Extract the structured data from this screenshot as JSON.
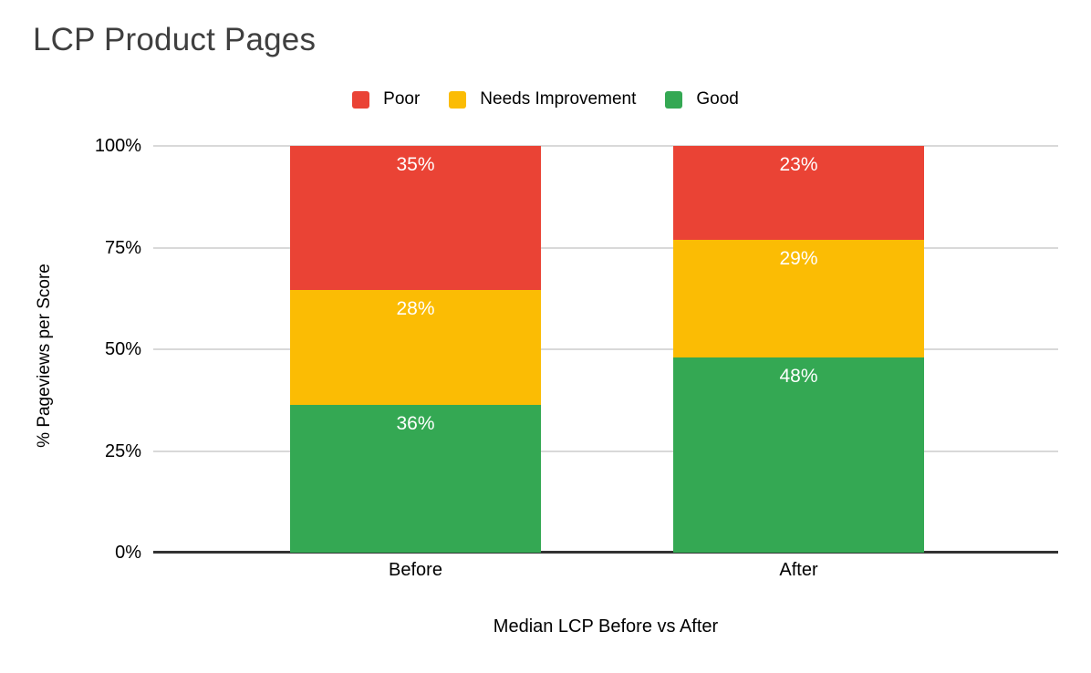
{
  "title": "LCP Product Pages",
  "yaxis_label": "% Pageviews per Score",
  "xaxis_label": "Median LCP Before vs After",
  "colors": {
    "poor": "#EA4335",
    "needs_improvement": "#FBBC04",
    "good": "#34A853",
    "gridline": "#d9d9d9",
    "axis_line": "#333333",
    "title_text": "#3f3f3f"
  },
  "chart_data": {
    "type": "bar",
    "stacked": true,
    "title": "LCP Product Pages",
    "xlabel": "Median LCP Before vs After",
    "ylabel": "% Pageviews per Score",
    "categories": [
      "Before",
      "After"
    ],
    "series": [
      {
        "name": "Poor",
        "color": "#EA4335",
        "values": [
          35,
          23
        ],
        "labels": [
          "35%",
          "23%"
        ]
      },
      {
        "name": "Needs Improvement",
        "color": "#FBBC04",
        "values": [
          28,
          29
        ],
        "labels": [
          "28%",
          "29%"
        ]
      },
      {
        "name": "Good",
        "color": "#34A853",
        "values": [
          36,
          48
        ],
        "labels": [
          "36%",
          "48%"
        ]
      }
    ],
    "ylim": [
      0,
      100
    ],
    "y_ticks": [
      {
        "value": 0,
        "label": "0%"
      },
      {
        "value": 25,
        "label": "25%"
      },
      {
        "value": 50,
        "label": "50%"
      },
      {
        "value": 75,
        "label": "75%"
      },
      {
        "value": 100,
        "label": "100%"
      }
    ],
    "grid": true,
    "legend_position": "top",
    "data_labels": "inside-top"
  }
}
